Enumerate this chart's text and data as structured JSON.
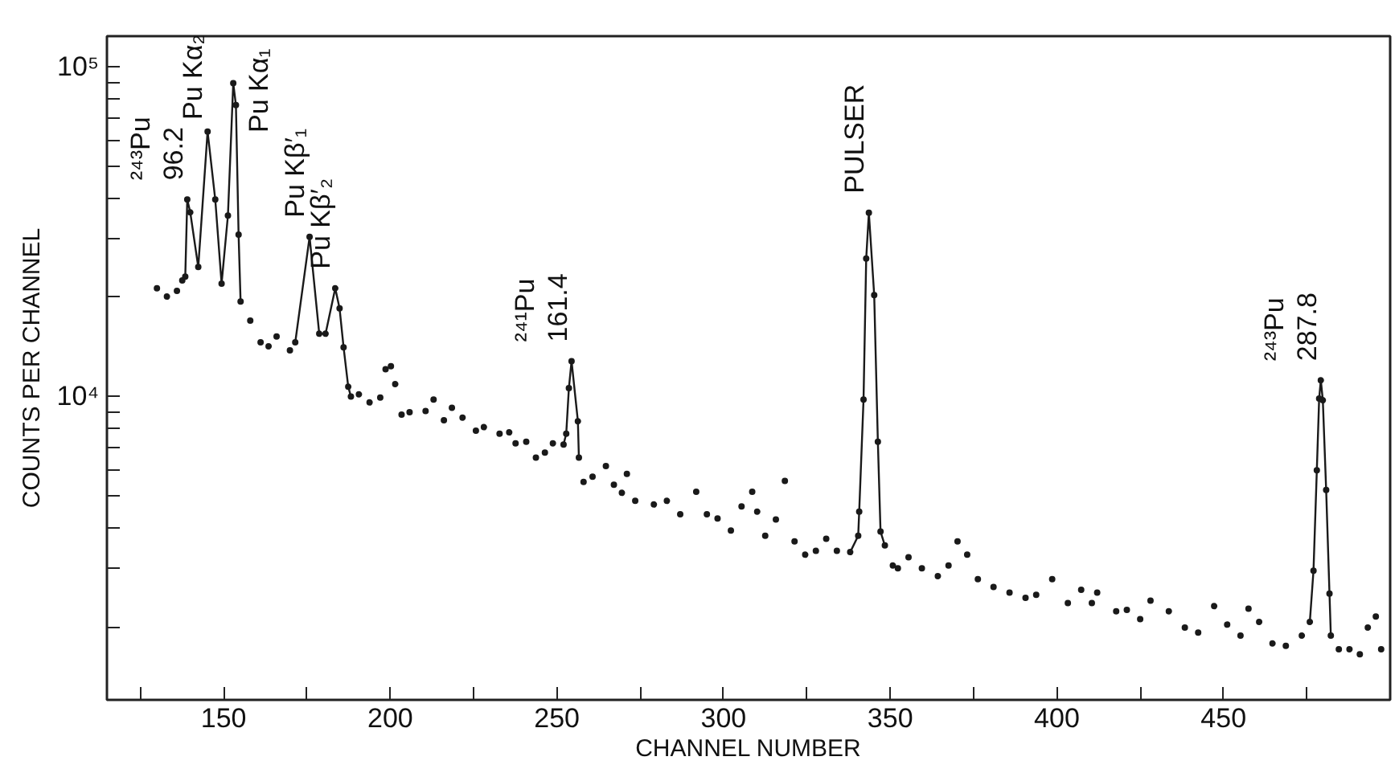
{
  "chart_data": {
    "type": "scatter",
    "xlabel": "CHANNEL NUMBER",
    "ylabel": "COUNTS PER CHANNEL",
    "log": "y",
    "grid": false,
    "marker": "circle",
    "line_style": "solid",
    "xlim": [
      115,
      500
    ],
    "xticks": [
      {
        "value": 125,
        "label": null
      },
      150,
      {
        "value": 175,
        "label": null
      },
      200,
      {
        "value": 225,
        "label": null
      },
      250,
      {
        "value": 275,
        "label": null
      },
      300,
      {
        "value": 325,
        "label": null
      },
      350,
      {
        "value": 375,
        "label": null
      },
      400,
      {
        "value": 425,
        "label": null
      },
      450,
      {
        "value": 475,
        "label": null
      }
    ],
    "ylim": [
      1200,
      124000
    ],
    "yticks": [
      {
        "value": 2000,
        "label": null
      },
      {
        "value": 3000,
        "label": null
      },
      {
        "value": 4000,
        "label": null
      },
      {
        "value": 5000,
        "label": null
      },
      {
        "value": 6000,
        "label": null
      },
      {
        "value": 7000,
        "label": null
      },
      {
        "value": 8000,
        "label": null
      },
      {
        "value": 9000,
        "label": null
      },
      {
        "value": 10000,
        "label": "10⁴"
      },
      {
        "value": 20000,
        "label": null
      },
      {
        "value": 30000,
        "label": null
      },
      {
        "value": 40000,
        "label": null
      },
      {
        "value": 50000,
        "label": null
      },
      {
        "value": 60000,
        "label": null
      },
      {
        "value": 70000,
        "label": null
      },
      {
        "value": 80000,
        "label": null
      },
      {
        "value": 90000,
        "label": null
      },
      {
        "value": 100000,
        "label": "10⁵"
      }
    ],
    "series": [
      {
        "color": "#1a1a1a",
        "x": [
          130,
          133,
          136,
          137.6
        ],
        "values": [
          21300,
          20100,
          20900,
          22500
        ]
      },
      {
        "type": "line",
        "color": "#1a1a1a",
        "x": [
          138.5,
          139.1,
          140,
          142.4,
          145.2,
          147.5,
          149.4,
          151.3,
          152.9,
          153.7,
          154.5,
          155.1
        ],
        "values": [
          23100,
          39600,
          36200,
          24700,
          63700,
          39600,
          22000,
          35400,
          89300,
          76600,
          31000,
          19400
        ]
      },
      {
        "color": "#1a1a1a",
        "x": [
          158,
          161.1,
          163.5,
          165.9,
          169.9
        ],
        "values": [
          17000,
          14600,
          14200,
          15200,
          13800
        ]
      },
      {
        "type": "line",
        "color": "#1a1a1a",
        "x": [
          171.5,
          175.8,
          178.7,
          180.6,
          183.5,
          184.8,
          186,
          187.4,
          188.2
        ],
        "values": [
          14600,
          30500,
          15500,
          15500,
          21300,
          18500,
          14100,
          10700,
          10000
        ]
      },
      {
        "color": "#1a1a1a",
        "x": [
          190.6,
          193.8,
          197,
          198.6,
          200.2,
          201.5,
          203.4,
          205.8,
          210.6,
          213,
          216.1,
          218.5,
          221.7,
          225.7,
          228.1,
          232.8,
          235.7,
          237.6,
          240.8,
          243.7,
          246.4,
          248.8
        ],
        "values": [
          10150,
          9590,
          9920,
          12100,
          12350,
          10900,
          8810,
          8960,
          9030,
          9780,
          8470,
          9240,
          8630,
          7870,
          8070,
          7710,
          7780,
          7210,
          7290,
          6520,
          6760,
          7210
        ]
      },
      {
        "type": "line",
        "color": "#1a1a1a",
        "x": [
          252,
          252.8,
          253.6,
          254.4,
          256.3,
          256.6
        ],
        "values": [
          7150,
          7710,
          10600,
          12800,
          8410,
          6520
        ]
      },
      {
        "color": "#1a1a1a",
        "x": [
          258,
          260.7,
          264.7,
          267.1,
          269.5,
          271,
          273.5,
          279.1,
          283,
          287,
          291.8,
          295,
          298.2,
          302.2,
          305.4,
          308.6,
          310.1,
          312.5,
          315.7,
          318.4,
          321.3,
          324.5,
          327.7,
          330.8,
          334
        ],
        "values": [
          5500,
          5710,
          6150,
          5400,
          5100,
          5820,
          4820,
          4700,
          4820,
          4390,
          5140,
          4390,
          4260,
          3920,
          4640,
          5140,
          4470,
          3780,
          4230,
          5540,
          3630,
          3310,
          3400,
          3700,
          3400
        ]
      },
      {
        "type": "line",
        "color": "#1a1a1a",
        "x": [
          338,
          340.4,
          340.7,
          342,
          342.8,
          343.6,
          345.2,
          346.3,
          347.1,
          348.4
        ],
        "values": [
          3370,
          3780,
          4470,
          9780,
          26200,
          36100,
          20300,
          7290,
          3890,
          3530
        ]
      },
      {
        "color": "#1a1a1a",
        "x": [
          350.8,
          352.3,
          355.5,
          359.5,
          364.3,
          367.5,
          370.2,
          373.1,
          376.3,
          381,
          385.8,
          390.6,
          393.8,
          398.6,
          403.3,
          407.3,
          410.5,
          412.1,
          417.8,
          421,
          425,
          428.1,
          433.6,
          438.4,
          442.4,
          447.2,
          451.1,
          455.1,
          457.5,
          460.7,
          464.7,
          468.7,
          473.5
        ],
        "values": [
          3070,
          3010,
          3250,
          3010,
          2850,
          3070,
          3630,
          3310,
          2790,
          2640,
          2540,
          2450,
          2500,
          2790,
          2360,
          2590,
          2360,
          2540,
          2230,
          2250,
          2110,
          2400,
          2230,
          1990,
          1920,
          2310,
          2030,
          1880,
          2270,
          2070,
          1780,
          1750,
          1880
        ]
      },
      {
        "type": "line",
        "color": "#1a1a1a",
        "x": [
          475.9,
          477,
          478,
          478.7,
          479.2,
          479.8,
          480.8,
          481.8,
          482.2
        ],
        "values": [
          2070,
          2960,
          5970,
          9860,
          11200,
          9740,
          5200,
          2520,
          1880
        ]
      },
      {
        "color": "#1a1a1a",
        "x": [
          484.6,
          487.8,
          490.9,
          493.3,
          495.7,
          497.3
        ],
        "values": [
          1710,
          1710,
          1650,
          1990,
          2150,
          1710
        ]
      }
    ],
    "annotations": [
      {
        "text": "²⁴³Pu",
        "x": 139.1,
        "y": 39600
      },
      {
        "text": "96.2",
        "x": 139.1,
        "y": 39600
      },
      {
        "text": "Pu Kα₂",
        "x": 145.2,
        "y": 63700
      },
      {
        "text": "Pu  Kα₁",
        "x": 152.9,
        "y": 89300
      },
      {
        "text": "Pu Kβ′₁",
        "x": 175.8,
        "y": 30500
      },
      {
        "text": "Pu Kβ′₂",
        "x": 183.5,
        "y": 21300
      },
      {
        "text": "²⁴¹Pu",
        "x": 254.4,
        "y": 12800
      },
      {
        "text": "161.4",
        "x": 254.4,
        "y": 12800
      },
      {
        "text": "PULSER",
        "x": 343.6,
        "y": 36100
      },
      {
        "text": "²⁴³Pu",
        "x": 479.2,
        "y": 11200
      },
      {
        "text": "287.8",
        "x": 479.2,
        "y": 11200
      }
    ]
  }
}
